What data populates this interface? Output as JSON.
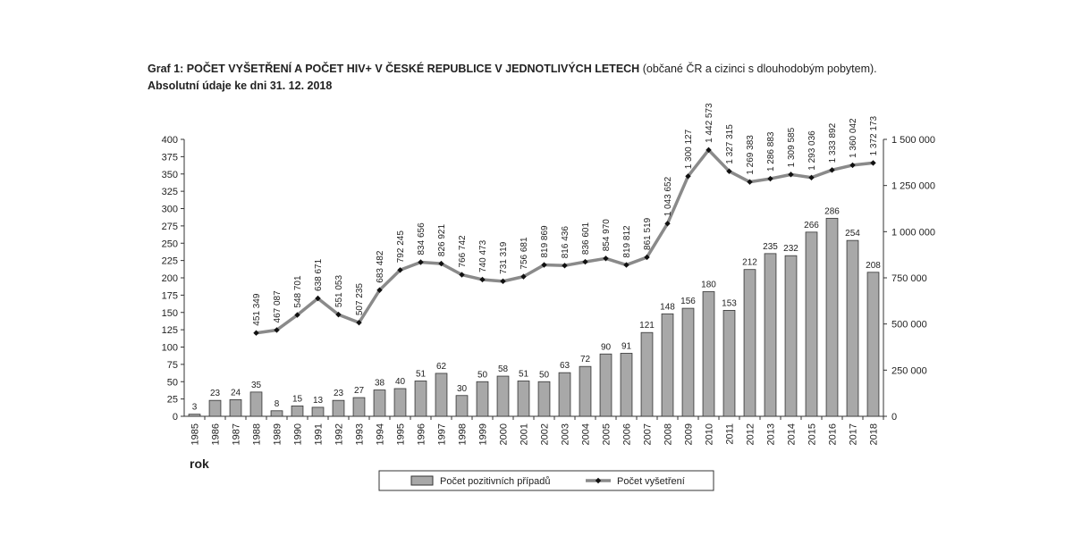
{
  "title": {
    "main": "Graf 1: POČET VYŠETŘENÍ A POČET HIV+ V ČESKÉ REPUBLICE V JEDNOTLIVÝCH LETECH",
    "note": "(občané ČR a cizinci s dlouhodobým pobytem).",
    "line2": "Absolutní údaje ke dni 31. 12. 2018"
  },
  "chart_data": {
    "type": "bar",
    "categories": [
      "1985",
      "1986",
      "1987",
      "1988",
      "1989",
      "1990",
      "1991",
      "1992",
      "1993",
      "1994",
      "1995",
      "1996",
      "1997",
      "1998",
      "1999",
      "2000",
      "2001",
      "2002",
      "2003",
      "2004",
      "2005",
      "2006",
      "2007",
      "2008",
      "2009",
      "2010",
      "2011",
      "2012",
      "2013",
      "2014",
      "2015",
      "2016",
      "2017",
      "2018"
    ],
    "xlabel": "rok",
    "left_axis": {
      "ylim": [
        0,
        400
      ],
      "ticks": [
        "0",
        "25",
        "50",
        "75",
        "100",
        "125",
        "150",
        "175",
        "200",
        "225",
        "250",
        "275",
        "300",
        "325",
        "350",
        "375",
        "400"
      ]
    },
    "right_axis": {
      "ylim": [
        0,
        1500000
      ],
      "ticks": [
        "0",
        "250 000",
        "500 000",
        "750 000",
        "1 000 000",
        "1 250 000",
        "1 500 000"
      ]
    },
    "grid": false,
    "legend_placement": "bottom-center",
    "colors": {
      "bars": "#a8a8a8",
      "bar_stroke": "#333333",
      "line": "#8a8a8a",
      "markers": "#111111"
    },
    "series": [
      {
        "name": "Počet pozitivních případů",
        "type": "bar",
        "axis": "left",
        "values": [
          3,
          23,
          24,
          35,
          8,
          15,
          13,
          23,
          27,
          38,
          40,
          51,
          62,
          30,
          50,
          58,
          51,
          50,
          63,
          72,
          90,
          91,
          121,
          148,
          156,
          180,
          153,
          212,
          235,
          232,
          266,
          286,
          254,
          208
        ],
        "labels": [
          "3",
          "23",
          "24",
          "35",
          "8",
          "15",
          "13",
          "23",
          "27",
          "38",
          "40",
          "51",
          "62",
          "30",
          "50",
          "58",
          "51",
          "50",
          "63",
          "72",
          "90",
          "91",
          "121",
          "148",
          "156",
          "180",
          "153",
          "212",
          "235",
          "232",
          "266",
          "286",
          "254",
          "208"
        ]
      },
      {
        "name": "Počet vyšetření",
        "type": "line",
        "axis": "right",
        "values": [
          null,
          null,
          null,
          451349,
          467087,
          548701,
          638671,
          551053,
          507235,
          683482,
          792245,
          834656,
          826921,
          766742,
          740473,
          731319,
          756681,
          819869,
          816436,
          836601,
          854970,
          819812,
          861519,
          1043652,
          1300127,
          1442573,
          1327315,
          1269383,
          1286883,
          1309585,
          1293036,
          1333892,
          1360042,
          1372173
        ],
        "labels": [
          null,
          null,
          null,
          "451 349",
          "467 087",
          "548 701",
          "638 671",
          "551 053",
          "507 235",
          "683 482",
          "792 245",
          "834 656",
          "826 921",
          "766 742",
          "740 473",
          "731 319",
          "756 681",
          "819 869",
          "816 436",
          "836 601",
          "854 970",
          "819 812",
          "861 519",
          "1 043 652",
          "1 300 127",
          "1 442 573",
          "1 327 315",
          "1 269 383",
          "1 286 883",
          "1 309 585",
          "1 293 036",
          "1 333 892",
          "1 360 042",
          "1 372 173"
        ]
      }
    ]
  }
}
